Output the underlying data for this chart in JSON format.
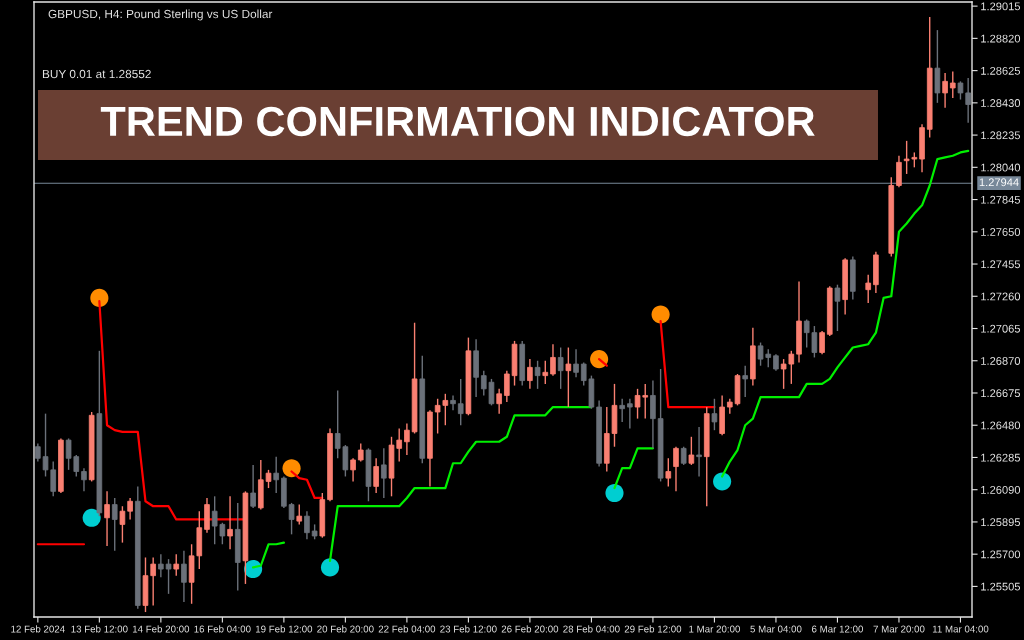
{
  "chart_data": {
    "type": "candlestick",
    "title": "TREND CONFIRMATION INDICATOR",
    "subtitle": "GBPUSD, H4: Pound Sterling vs US Dollar",
    "annotations": [
      "BUY 0.01 at 1.28552"
    ],
    "categories": [
      "12 Feb 2024",
      null,
      null,
      null,
      null,
      null,
      null,
      null,
      "13 Feb 12:00",
      null,
      null,
      null,
      null,
      null,
      null,
      null,
      "14 Feb 20:00",
      null,
      null,
      null,
      null,
      null,
      null,
      null,
      "16 Feb 04:00",
      null,
      null,
      null,
      null,
      null,
      null,
      null,
      "19 Feb 12:00",
      null,
      null,
      null,
      null,
      null,
      null,
      null,
      "20 Feb 20:00",
      null,
      null,
      null,
      null,
      null,
      null,
      null,
      "22 Feb 04:00",
      null,
      null,
      null,
      null,
      null,
      null,
      null,
      "23 Feb 12:00",
      null,
      null,
      null,
      null,
      null,
      null,
      null,
      "26 Feb 20:00",
      null,
      null,
      null,
      null,
      null,
      null,
      null,
      "28 Feb 04:00",
      null,
      null,
      null,
      null,
      null,
      null,
      null,
      "29 Feb 12:00",
      null,
      null,
      null,
      null,
      null,
      null,
      null,
      "1 Mar 20:00",
      null,
      null,
      null,
      null,
      null,
      null,
      null,
      "5 Mar 04:00",
      null,
      null,
      null,
      null,
      null,
      null,
      null,
      "6 Mar 12:00",
      null,
      null,
      null,
      null,
      null,
      null,
      null,
      "7 Mar 20:00",
      null,
      null,
      null,
      null,
      null,
      null,
      null,
      "11 Mar 04:00",
      null
    ],
    "ohlc": [
      [
        1.2635,
        1.2637,
        1.2626,
        1.2628
      ],
      [
        1.2629,
        1.2655,
        1.2617,
        1.2621
      ],
      [
        1.2621,
        1.2626,
        1.2605,
        1.2608
      ],
      [
        1.2608,
        1.264,
        1.2607,
        1.2639
      ],
      [
        1.2639,
        1.264,
        1.2621,
        1.2628
      ],
      [
        1.2629,
        1.263,
        1.2617,
        1.262
      ],
      [
        1.262,
        1.2622,
        1.2608,
        1.2615
      ],
      [
        1.2615,
        1.2656,
        1.2614,
        1.2654
      ],
      [
        1.2655,
        1.2693,
        1.2593,
        1.2595
      ],
      [
        1.2592,
        1.2608,
        1.2575,
        1.26
      ],
      [
        1.26,
        1.2604,
        1.2572,
        1.2591
      ],
      [
        1.2588,
        1.2599,
        1.2577,
        1.2596
      ],
      [
        1.2596,
        1.2604,
        1.2591,
        1.2602
      ],
      [
        1.2602,
        1.2611,
        1.2537,
        1.2539
      ],
      [
        1.2539,
        1.2568,
        1.2535,
        1.2557
      ],
      [
        1.2557,
        1.2568,
        1.2539,
        1.2564
      ],
      [
        1.2564,
        1.257,
        1.2556,
        1.2561
      ],
      [
        1.2564,
        1.2567,
        1.2546,
        1.2561
      ],
      [
        1.2561,
        1.257,
        1.2557,
        1.2564
      ],
      [
        1.2564,
        1.2572,
        1.2541,
        1.2553
      ],
      [
        1.2553,
        1.2576,
        1.254,
        1.2569
      ],
      [
        1.2569,
        1.2596,
        1.2561,
        1.2586
      ],
      [
        1.2585,
        1.2604,
        1.2583,
        1.26
      ],
      [
        1.2596,
        1.2605,
        1.2576,
        1.2587
      ],
      [
        1.2588,
        1.2589,
        1.2576,
        1.2581
      ],
      [
        1.2581,
        1.2605,
        1.2573,
        1.2585
      ],
      [
        1.2585,
        1.2601,
        1.2548,
        1.2565
      ],
      [
        1.2566,
        1.2608,
        1.2552,
        1.2607
      ],
      [
        1.2607,
        1.2624,
        1.2598,
        1.2599
      ],
      [
        1.2598,
        1.2627,
        1.2597,
        1.2615
      ],
      [
        1.2614,
        1.2621,
        1.261,
        1.2619
      ],
      [
        1.2619,
        1.2629,
        1.2607,
        1.2615
      ],
      [
        1.2616,
        1.2617,
        1.2598,
        1.2599
      ],
      [
        1.26,
        1.2601,
        1.2582,
        1.2591
      ],
      [
        1.259,
        1.26,
        1.2588,
        1.2593
      ],
      [
        1.2593,
        1.2596,
        1.2579,
        1.2583
      ],
      [
        1.2584,
        1.2588,
        1.2579,
        1.2581
      ],
      [
        1.2581,
        1.2607,
        1.258,
        1.2603
      ],
      [
        1.2603,
        1.2646,
        1.2602,
        1.2643
      ],
      [
        1.2643,
        1.2669,
        1.2628,
        1.2634
      ],
      [
        1.2635,
        1.2636,
        1.2617,
        1.2621
      ],
      [
        1.2621,
        1.2628,
        1.2614,
        1.2627
      ],
      [
        1.2627,
        1.2637,
        1.2626,
        1.2633
      ],
      [
        1.2633,
        1.2634,
        1.2602,
        1.2611
      ],
      [
        1.2611,
        1.2628,
        1.2607,
        1.2623
      ],
      [
        1.2624,
        1.2634,
        1.2604,
        1.2616
      ],
      [
        1.2616,
        1.2641,
        1.2605,
        1.2636
      ],
      [
        1.2634,
        1.2646,
        1.2626,
        1.2639
      ],
      [
        1.2638,
        1.2649,
        1.263,
        1.2645
      ],
      [
        1.2644,
        1.271,
        1.2643,
        1.2676
      ],
      [
        1.2676,
        1.269,
        1.2625,
        1.2628
      ],
      [
        1.2628,
        1.2657,
        1.2611,
        1.2656
      ],
      [
        1.2656,
        1.2664,
        1.2643,
        1.266
      ],
      [
        1.266,
        1.2667,
        1.2648,
        1.2663
      ],
      [
        1.2663,
        1.2666,
        1.2657,
        1.2661
      ],
      [
        1.2661,
        1.2676,
        1.2648,
        1.2655
      ],
      [
        1.2655,
        1.2701,
        1.2654,
        1.2693
      ],
      [
        1.2693,
        1.27,
        1.2665,
        1.2677
      ],
      [
        1.2678,
        1.2681,
        1.2666,
        1.267
      ],
      [
        1.2674,
        1.2676,
        1.266,
        1.2661
      ],
      [
        1.2661,
        1.267,
        1.2655,
        1.2667
      ],
      [
        1.2666,
        1.2681,
        1.2662,
        1.2679
      ],
      [
        1.2678,
        1.2699,
        1.2672,
        1.2697
      ],
      [
        1.2697,
        1.2699,
        1.2672,
        1.2675
      ],
      [
        1.2675,
        1.2688,
        1.267,
        1.2683
      ],
      [
        1.2683,
        1.2687,
        1.267,
        1.2678
      ],
      [
        1.2678,
        1.2687,
        1.2673,
        1.268
      ],
      [
        1.2679,
        1.2697,
        1.2678,
        1.2689
      ],
      [
        1.2689,
        1.2695,
        1.267,
        1.2681
      ],
      [
        1.2681,
        1.2695,
        1.2659,
        1.2685
      ],
      [
        1.2685,
        1.2694,
        1.2677,
        1.268
      ],
      [
        1.2685,
        1.2686,
        1.2672,
        1.2675
      ],
      [
        1.2676,
        1.2678,
        1.2658,
        1.2659
      ],
      [
        1.2659,
        1.2663,
        1.2623,
        1.2625
      ],
      [
        1.2625,
        1.2659,
        1.262,
        1.2643
      ],
      [
        1.2643,
        1.2673,
        1.2635,
        1.266
      ],
      [
        1.266,
        1.2664,
        1.265,
        1.2658
      ],
      [
        1.2661,
        1.2664,
        1.2646,
        1.2659
      ],
      [
        1.2659,
        1.267,
        1.2652,
        1.2666
      ],
      [
        1.2665,
        1.2673,
        1.2652,
        1.2666
      ],
      [
        1.2666,
        1.2675,
        1.2634,
        1.2652
      ],
      [
        1.2652,
        1.2682,
        1.2614,
        1.2616
      ],
      [
        1.2616,
        1.2628,
        1.2611,
        1.262
      ],
      [
        1.2623,
        1.2635,
        1.2608,
        1.2634
      ],
      [
        1.2634,
        1.2635,
        1.2624,
        1.2625
      ],
      [
        1.2625,
        1.2641,
        1.2624,
        1.263
      ],
      [
        1.263,
        1.2647,
        1.2617,
        1.2629
      ],
      [
        1.2629,
        1.2659,
        1.2599,
        1.2655
      ],
      [
        1.2655,
        1.2664,
        1.2645,
        1.265
      ],
      [
        1.2643,
        1.2666,
        1.2642,
        1.2659
      ],
      [
        1.2659,
        1.2664,
        1.2655,
        1.2662
      ],
      [
        1.2661,
        1.2679,
        1.266,
        1.2678
      ],
      [
        1.2678,
        1.2684,
        1.2665,
        1.2676
      ],
      [
        1.2676,
        1.2707,
        1.2672,
        1.2696
      ],
      [
        1.2696,
        1.2698,
        1.2684,
        1.2688
      ],
      [
        1.2691,
        1.2694,
        1.2683,
        1.2689
      ],
      [
        1.269,
        1.2691,
        1.2681,
        1.2682
      ],
      [
        1.2682,
        1.2688,
        1.267,
        1.2685
      ],
      [
        1.2685,
        1.2693,
        1.2673,
        1.2691
      ],
      [
        1.2691,
        1.2735,
        1.2686,
        1.2711
      ],
      [
        1.2711,
        1.2712,
        1.2695,
        1.2704
      ],
      [
        1.2704,
        1.2708,
        1.2689,
        1.2692
      ],
      [
        1.2692,
        1.2705,
        1.2691,
        1.2704
      ],
      [
        1.2703,
        1.2732,
        1.2702,
        1.2731
      ],
      [
        1.2731,
        1.2733,
        1.2705,
        1.2723
      ],
      [
        1.2724,
        1.2749,
        1.2715,
        1.2748
      ],
      [
        1.2748,
        1.275,
        1.2724,
        1.2729
      ],
      null,
      [
        1.273,
        1.2739,
        1.2722,
        1.2734
      ],
      [
        1.2733,
        1.2753,
        1.2728,
        1.2751
      ],
      null,
      [
        1.2752,
        1.2798,
        1.275,
        1.2793
      ],
      [
        1.2793,
        1.2811,
        1.2792,
        1.2807
      ],
      [
        1.2808,
        1.282,
        1.28,
        1.2809
      ],
      [
        1.2809,
        1.2813,
        1.2804,
        1.281
      ],
      [
        1.2809,
        1.283,
        1.2801,
        1.2828
      ],
      [
        1.2827,
        1.2895,
        1.2822,
        1.2864
      ],
      [
        1.2864,
        1.2887,
        1.2843,
        1.2849
      ],
      [
        1.2849,
        1.2861,
        1.284,
        1.2856
      ],
      [
        1.2852,
        1.2862,
        1.2846,
        1.2855
      ],
      [
        1.2855,
        1.2856,
        1.2845,
        1.2849
      ],
      [
        1.2849,
        1.2858,
        1.2831,
        1.2842
      ]
    ],
    "colors": [
      "#6b717a",
      "#6b717a",
      "#6b717a",
      "#fa8072",
      "#6b717a",
      "#6b717a",
      "#6b717a",
      "#fa8072",
      "#6b717a",
      "#fa8072",
      "#6b717a",
      "#fa8072",
      "#fa8072",
      "#6b717a",
      "#fa8072",
      "#fa8072",
      "#6b717a",
      "#6b717a",
      "#fa8072",
      "#6b717a",
      "#fa8072",
      "#fa8072",
      "#fa8072",
      "#6b717a",
      "#6b717a",
      "#fa8072",
      "#6b717a",
      "#fa8072",
      "#6b717a",
      "#fa8072",
      "#fa8072",
      "#6b717a",
      "#6b717a",
      "#6b717a",
      "#fa8072",
      "#6b717a",
      "#6b717a",
      "#fa8072",
      "#fa8072",
      "#6b717a",
      "#6b717a",
      "#fa8072",
      "#fa8072",
      "#6b717a",
      "#fa8072",
      "#6b717a",
      "#fa8072",
      "#fa8072",
      "#fa8072",
      "#fa8072",
      "#6b717a",
      "#fa8072",
      "#fa8072",
      "#fa8072",
      "#6b717a",
      "#6b717a",
      "#fa8072",
      "#6b717a",
      "#6b717a",
      "#6b717a",
      "#fa8072",
      "#fa8072",
      "#fa8072",
      "#6b717a",
      "#fa8072",
      "#6b717a",
      "#fa8072",
      "#fa8072",
      "#6b717a",
      "#fa8072",
      "#6b717a",
      "#6b717a",
      "#6b717a",
      "#6b717a",
      "#fa8072",
      "#fa8072",
      "#6b717a",
      "#6b717a",
      "#fa8072",
      "#fa8072",
      "#6b717a",
      "#6b717a",
      "#fa8072",
      "#fa8072",
      "#6b717a",
      "#fa8072",
      "#6b717a",
      "#fa8072",
      "#6b717a",
      "#fa8072",
      "#fa8072",
      "#fa8072",
      "#6b717a",
      "#fa8072",
      "#6b717a",
      "#6b717a",
      "#6b717a",
      "#fa8072",
      "#fa8072",
      "#fa8072",
      "#6b717a",
      "#6b717a",
      "#fa8072",
      "#fa8072",
      "#6b717a",
      "#fa8072",
      "#6b717a",
      null,
      "#fa8072",
      "#fa8072",
      null,
      "#fa8072",
      "#fa8072",
      "#fa8072",
      "#fa8072",
      "#fa8072",
      "#fa8072",
      "#6b717a",
      "#fa8072",
      "#fa8072",
      "#6b717a",
      "#6b717a"
    ],
    "ylim": [
      1.2532,
      1.2904
    ],
    "yticks": [
      1.25505,
      {
        "value": 1.257,
        "label": "1.25700"
      },
      1.25895,
      {
        "value": 1.2609,
        "label": "1.26090"
      },
      1.26285,
      {
        "value": 1.2648,
        "label": "1.26480"
      },
      1.26675,
      {
        "value": 1.2687,
        "label": "1.26870"
      },
      1.27065,
      {
        "value": 1.2726,
        "label": "1.27260"
      },
      1.27455,
      {
        "value": 1.2765,
        "label": "1.27650"
      },
      1.27845,
      {
        "value": 1.2804,
        "label": "1.28040"
      },
      1.28235,
      {
        "value": 1.2843,
        "label": "1.28430"
      },
      1.28625,
      {
        "value": 1.2882,
        "label": "1.28820"
      },
      1.29015
    ],
    "ref_lines": [
      {
        "axis": "y",
        "value": 1.27944,
        "label": "1.27944",
        "color": "#778899"
      }
    ],
    "series": [
      {
        "type": "line",
        "color": "#ff0000",
        "values": [
          1.2576,
          1.2576,
          1.2576,
          1.2576,
          1.2576,
          1.2576,
          1.2576,
          null,
          1.2723,
          1.2648,
          1.2645,
          1.2644,
          1.2644,
          1.2644,
          1.2602,
          1.2599,
          1.2599,
          1.2599,
          1.2591,
          1.2591,
          1.2591,
          1.2591,
          1.2591,
          1.2591,
          1.2591,
          1.2591,
          1.2591,
          1.2591,
          null,
          null,
          null,
          null,
          null,
          1.262,
          1.2616,
          1.2615,
          1.2604,
          1.2604,
          null,
          null,
          null,
          null,
          null,
          null,
          null,
          null,
          null,
          null,
          null,
          null,
          null,
          null,
          null,
          null,
          null,
          null,
          null,
          null,
          null,
          null,
          null,
          null,
          null,
          null,
          null,
          null,
          null,
          null,
          null,
          null,
          null,
          null,
          null,
          1.2688,
          1.2684,
          null,
          null,
          null,
          null,
          null,
          null,
          1.2711,
          1.2659,
          1.2659,
          1.2659,
          1.2659,
          1.2659,
          1.2659,
          1.2659,
          null,
          null,
          null,
          null,
          null,
          null,
          null,
          null,
          null,
          null,
          null,
          null,
          null,
          null,
          null,
          null,
          null,
          null,
          null,
          null,
          null,
          null,
          null,
          null,
          null,
          null,
          null,
          null,
          null,
          null,
          null,
          null,
          null
        ]
      },
      {
        "type": "line",
        "color": "#00f000",
        "values": [
          null,
          null,
          null,
          null,
          null,
          null,
          null,
          null,
          null,
          null,
          null,
          null,
          null,
          null,
          null,
          null,
          null,
          null,
          null,
          null,
          null,
          null,
          null,
          null,
          null,
          null,
          null,
          null,
          1.2562,
          1.2563,
          1.2576,
          1.2576,
          1.2577,
          null,
          null,
          null,
          null,
          null,
          1.2566,
          1.2599,
          1.2599,
          1.2599,
          1.2599,
          1.2599,
          1.2599,
          1.2599,
          1.2599,
          1.2599,
          1.2604,
          1.261,
          1.261,
          1.261,
          1.261,
          1.261,
          1.2625,
          1.2625,
          1.2632,
          1.2638,
          1.2638,
          1.2638,
          1.2638,
          1.2641,
          1.2654,
          1.2654,
          1.2654,
          1.2654,
          1.2654,
          1.2659,
          1.2659,
          1.2659,
          1.2659,
          1.2659,
          1.2659,
          null,
          null,
          1.261,
          1.2622,
          1.2622,
          1.2634,
          1.2634,
          1.2634,
          null,
          null,
          null,
          null,
          null,
          null,
          null,
          null,
          1.2617,
          1.2626,
          1.2633,
          1.2648,
          1.2652,
          1.2665,
          1.2665,
          1.2665,
          1.2665,
          1.2665,
          1.2665,
          1.2673,
          1.2673,
          1.2673,
          1.2676,
          1.2683,
          1.2689,
          1.2695,
          1.2696,
          1.2697,
          1.2704,
          1.2725,
          1.2726,
          1.2765,
          1.277,
          1.2776,
          1.2781,
          1.2793,
          1.2809,
          1.281,
          1.2811,
          1.2813,
          1.2814
        ]
      },
      {
        "type": "scatter",
        "color": "#ff8c00",
        "marker": "circle",
        "values": [
          null,
          null,
          null,
          null,
          null,
          null,
          null,
          null,
          1.2725,
          null,
          null,
          null,
          null,
          null,
          null,
          null,
          null,
          null,
          null,
          null,
          null,
          null,
          null,
          null,
          null,
          null,
          null,
          null,
          null,
          null,
          null,
          null,
          null,
          1.2622,
          null,
          null,
          null,
          null,
          null,
          null,
          null,
          null,
          null,
          null,
          null,
          null,
          null,
          null,
          null,
          null,
          null,
          null,
          null,
          null,
          null,
          null,
          null,
          null,
          null,
          null,
          null,
          null,
          null,
          null,
          null,
          null,
          null,
          null,
          null,
          null,
          null,
          null,
          null,
          1.2688,
          null,
          null,
          null,
          null,
          null,
          null,
          null,
          1.2715,
          null,
          null,
          null,
          null,
          null,
          null,
          null,
          null,
          null,
          null,
          null,
          null,
          null,
          null,
          null,
          null,
          null,
          null,
          null,
          null,
          null,
          null,
          null,
          null,
          null,
          null,
          null,
          null,
          null,
          null,
          null,
          null,
          null,
          null,
          null,
          null,
          null,
          null,
          null,
          null
        ]
      },
      {
        "type": "scatter",
        "color": "#00ced1",
        "marker": "circle",
        "values": [
          null,
          null,
          null,
          null,
          null,
          null,
          null,
          1.2592,
          null,
          null,
          null,
          null,
          null,
          null,
          null,
          null,
          null,
          null,
          null,
          null,
          null,
          null,
          null,
          null,
          null,
          null,
          null,
          null,
          1.2561,
          null,
          null,
          null,
          null,
          null,
          null,
          null,
          null,
          null,
          1.2562,
          null,
          null,
          null,
          null,
          null,
          null,
          null,
          null,
          null,
          null,
          null,
          null,
          null,
          null,
          null,
          null,
          null,
          null,
          null,
          null,
          null,
          null,
          null,
          null,
          null,
          null,
          null,
          null,
          null,
          null,
          null,
          null,
          null,
          null,
          null,
          null,
          1.2607,
          null,
          null,
          null,
          null,
          null,
          null,
          null,
          null,
          null,
          null,
          null,
          null,
          null,
          1.2614,
          null,
          null,
          null,
          null,
          null,
          null,
          null,
          null,
          null,
          null,
          null,
          null,
          null,
          null,
          null,
          null,
          null,
          null,
          null,
          null,
          null,
          null,
          null,
          null,
          null,
          null,
          null,
          null,
          null,
          null,
          null,
          null
        ]
      }
    ]
  }
}
